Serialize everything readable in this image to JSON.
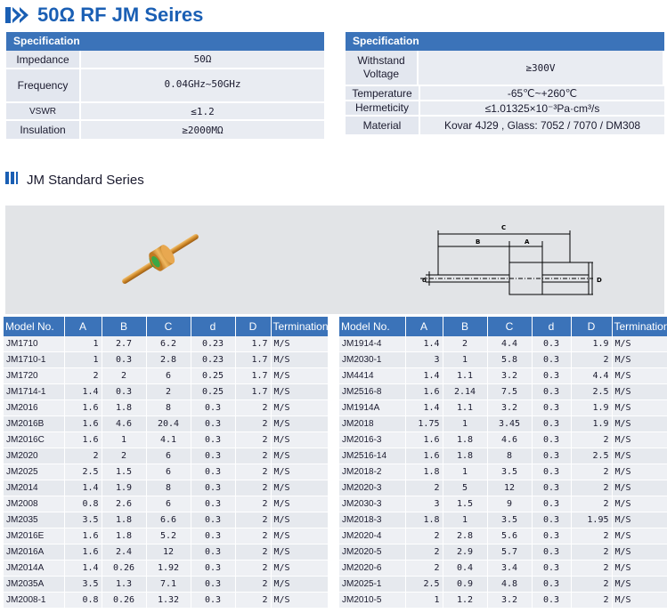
{
  "title": "50Ω RF JM Seires",
  "spec_left": {
    "header": "Specification",
    "rows": [
      {
        "label": "Impedance",
        "value": "50Ω"
      },
      {
        "label": "Frequency",
        "value": "0.04GHz~50GHz"
      },
      {
        "label": "VSWR",
        "value": "≤1.2"
      },
      {
        "label": "Insulation",
        "value": "≥2000MΩ"
      }
    ]
  },
  "spec_right": {
    "header": "Specification",
    "rows": [
      {
        "label": "Withstand Voltage",
        "value": "≥300V"
      },
      {
        "label": "Temperature",
        "value": "-65℃~+260℃"
      },
      {
        "label": "Hermeticity",
        "value": "≤1.01325×10⁻³Pa·cm³/s"
      },
      {
        "label": "Material",
        "value": "Kovar 4J29 , Glass: 7052 / 7070 / DM308"
      }
    ]
  },
  "section_title": "JM Standard Series",
  "drawing_labels": {
    "c": "C",
    "b": "B",
    "a": "A",
    "d": "d",
    "D": "D"
  },
  "columns": [
    "Model No.",
    "A",
    "B",
    "C",
    "d",
    "D",
    "Termination"
  ],
  "table_left": [
    [
      "JM1710",
      "1",
      "2.7",
      "6.2",
      "0.23",
      "1.7",
      "M/S"
    ],
    [
      "JM1710-1",
      "1",
      "0.3",
      "2.8",
      "0.23",
      "1.7",
      "M/S"
    ],
    [
      "JM1720",
      "2",
      "2",
      "6",
      "0.25",
      "1.7",
      "M/S"
    ],
    [
      "JM1714-1",
      "1.4",
      "0.3",
      "2",
      "0.25",
      "1.7",
      "M/S"
    ],
    [
      "JM2016",
      "1.6",
      "1.8",
      "8",
      "0.3",
      "2",
      "M/S"
    ],
    [
      "JM2016B",
      "1.6",
      "4.6",
      "20.4",
      "0.3",
      "2",
      "M/S"
    ],
    [
      "JM2016C",
      "1.6",
      "1",
      "4.1",
      "0.3",
      "2",
      "M/S"
    ],
    [
      "JM2020",
      "2",
      "2",
      "6",
      "0.3",
      "2",
      "M/S"
    ],
    [
      "JM2025",
      "2.5",
      "1.5",
      "6",
      "0.3",
      "2",
      "M/S"
    ],
    [
      "JM2014",
      "1.4",
      "1.9",
      "8",
      "0.3",
      "2",
      "M/S"
    ],
    [
      "JM2008",
      "0.8",
      "2.6",
      "6",
      "0.3",
      "2",
      "M/S"
    ],
    [
      "JM2035",
      "3.5",
      "1.8",
      "6.6",
      "0.3",
      "2",
      "M/S"
    ],
    [
      "JM2016E",
      "1.6",
      "1.8",
      "5.2",
      "0.3",
      "2",
      "M/S"
    ],
    [
      "JM2016A",
      "1.6",
      "2.4",
      "12",
      "0.3",
      "2",
      "M/S"
    ],
    [
      "JM2014A",
      "1.4",
      "0.26",
      "1.92",
      "0.3",
      "2",
      "M/S"
    ],
    [
      "JM2035A",
      "3.5",
      "1.3",
      "7.1",
      "0.3",
      "2",
      "M/S"
    ],
    [
      "JM2008-1",
      "0.8",
      "0.26",
      "1.32",
      "0.3",
      "2",
      "M/S"
    ]
  ],
  "table_right": [
    [
      "JM1914-4",
      "1.4",
      "2",
      "4.4",
      "0.3",
      "1.9",
      "M/S"
    ],
    [
      "JM2030-1",
      "3",
      "1",
      "5.8",
      "0.3",
      "2",
      "M/S"
    ],
    [
      "JM4414",
      "1.4",
      "1.1",
      "3.2",
      "0.3",
      "4.4",
      "M/S"
    ],
    [
      "JM2516-8",
      "1.6",
      "2.14",
      "7.5",
      "0.3",
      "2.5",
      "M/S"
    ],
    [
      "JM1914A",
      "1.4",
      "1.1",
      "3.2",
      "0.3",
      "1.9",
      "M/S"
    ],
    [
      "JM2018",
      "1.75",
      "1",
      "3.45",
      "0.3",
      "1.9",
      "M/S"
    ],
    [
      "JM2016-3",
      "1.6",
      "1.8",
      "4.6",
      "0.3",
      "2",
      "M/S"
    ],
    [
      "JM2516-14",
      "1.6",
      "1.8",
      "8",
      "0.3",
      "2.5",
      "M/S"
    ],
    [
      "JM2018-2",
      "1.8",
      "1",
      "3.5",
      "0.3",
      "2",
      "M/S"
    ],
    [
      "JM2020-3",
      "2",
      "5",
      "12",
      "0.3",
      "2",
      "M/S"
    ],
    [
      "JM2030-3",
      "3",
      "1.5",
      "9",
      "0.3",
      "2",
      "M/S"
    ],
    [
      "JM2018-3",
      "1.8",
      "1",
      "3.5",
      "0.3",
      "1.95",
      "M/S"
    ],
    [
      "JM2020-4",
      "2",
      "2.8",
      "5.6",
      "0.3",
      "2",
      "M/S"
    ],
    [
      "JM2020-5",
      "2",
      "2.9",
      "5.7",
      "0.3",
      "2",
      "M/S"
    ],
    [
      "JM2020-6",
      "2",
      "0.4",
      "3.4",
      "0.3",
      "2",
      "M/S"
    ],
    [
      "JM2025-1",
      "2.5",
      "0.9",
      "4.8",
      "0.3",
      "2",
      "M/S"
    ],
    [
      "JM2010-5",
      "1",
      "1.2",
      "3.2",
      "0.3",
      "2",
      "M/S"
    ]
  ]
}
